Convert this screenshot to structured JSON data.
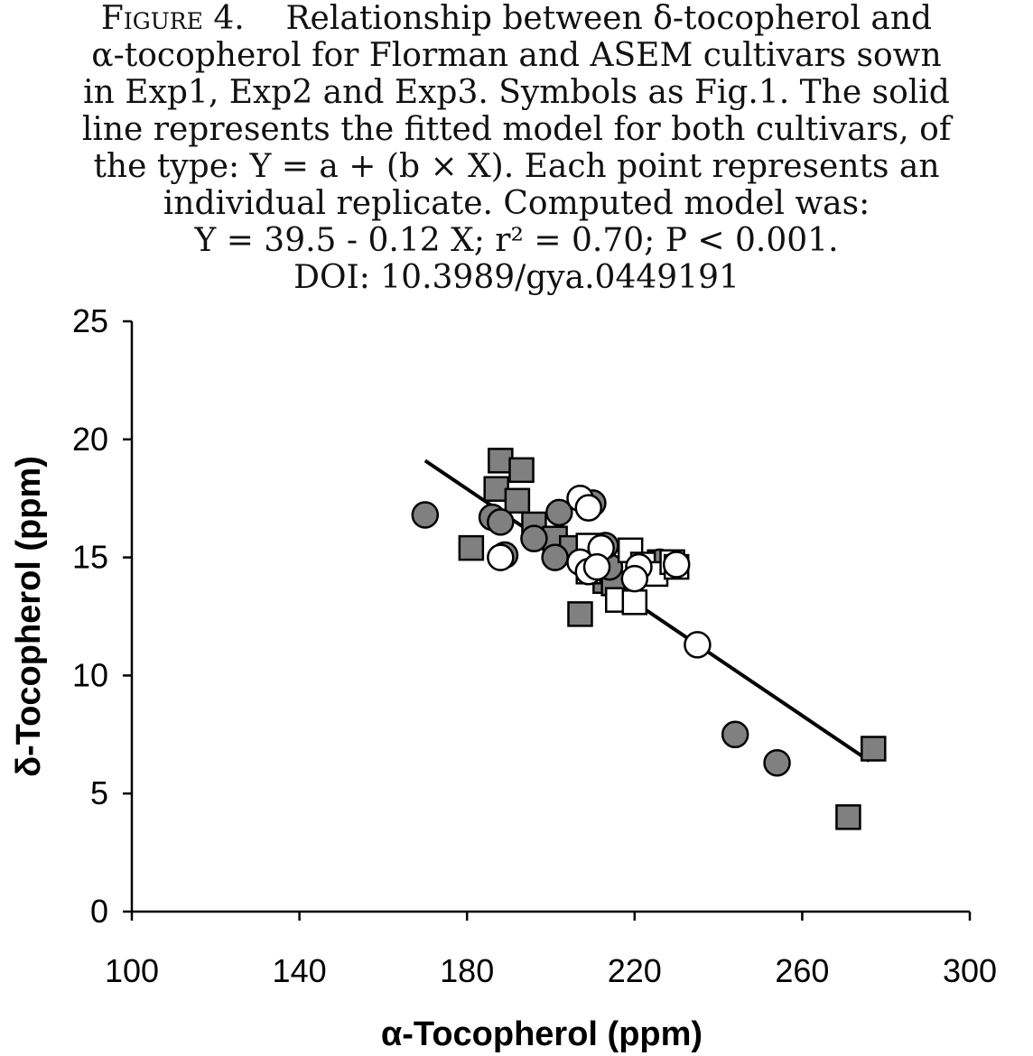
{
  "caption": {
    "label": "Figure 4.",
    "lines": [
      "Relationship between δ-tocopherol and",
      "α-tocopherol for Florman and ASEM cultivars sown",
      "in Exp1, Exp2 and Exp3. Symbols as Fig.1. The solid",
      "line represents the fitted model for both cultivars, of",
      "the type: Y = a + (b × X). Each point represents an",
      "individual replicate. Computed model was:",
      "Y = 39.5 - 0.12 X; r² = 0.70; P < 0.001.",
      "DOI: 10.3989/gya.0449191"
    ]
  },
  "chart_data": {
    "type": "scatter",
    "xlabel": "α-Tocopherol (ppm)",
    "ylabel": "δ-Tocopherol (ppm)",
    "xlim": [
      100,
      300
    ],
    "ylim": [
      0,
      25
    ],
    "xticks": [
      100,
      140,
      180,
      220,
      260,
      300
    ],
    "yticks": [
      0,
      5,
      10,
      15,
      20,
      25
    ],
    "grid": false,
    "colors": {
      "filled": "#808080",
      "open": "#ffffff",
      "edge": "#000000",
      "line": "#000000"
    },
    "series": [
      {
        "marker": "square",
        "fill": "filled",
        "points": [
          [
            188,
            19.1
          ],
          [
            193,
            18.7
          ],
          [
            187,
            17.9
          ],
          [
            192,
            17.4
          ],
          [
            196,
            16.4
          ],
          [
            181,
            15.4
          ],
          [
            201,
            15.8
          ],
          [
            205,
            15.4
          ],
          [
            213,
            14.0
          ],
          [
            215,
            13.9
          ],
          [
            207,
            12.6
          ],
          [
            226,
            14.8
          ],
          [
            277,
            6.9
          ],
          [
            271,
            4.0
          ]
        ]
      },
      {
        "marker": "circle",
        "fill": "filled",
        "points": [
          [
            170,
            16.8
          ],
          [
            186,
            16.7
          ],
          [
            188,
            16.5
          ],
          [
            210,
            17.3
          ],
          [
            202,
            16.9
          ],
          [
            196,
            15.8
          ],
          [
            189,
            15.1
          ],
          [
            201,
            15.0
          ],
          [
            214,
            14.6
          ],
          [
            213,
            15.5
          ],
          [
            226,
            14.8
          ],
          [
            244,
            7.5
          ],
          [
            254,
            6.3
          ]
        ]
      },
      {
        "marker": "square",
        "fill": "open",
        "points": [
          [
            209,
            15.5
          ],
          [
            219,
            15.3
          ],
          [
            222,
            14.7
          ],
          [
            225,
            14.3
          ],
          [
            229,
            14.8
          ],
          [
            230,
            14.6
          ],
          [
            216,
            13.2
          ],
          [
            220,
            13.1
          ],
          [
            209,
            14.4
          ]
        ]
      },
      {
        "marker": "circle",
        "fill": "open",
        "points": [
          [
            207,
            17.5
          ],
          [
            209,
            17.1
          ],
          [
            188,
            15.0
          ],
          [
            212,
            15.4
          ],
          [
            207,
            14.8
          ],
          [
            209,
            14.4
          ],
          [
            221,
            14.6
          ],
          [
            220,
            14.1
          ],
          [
            230,
            14.7
          ],
          [
            235,
            11.3
          ],
          [
            211,
            14.6
          ]
        ]
      }
    ],
    "fit_line": {
      "intercept": 39.5,
      "slope": -0.12,
      "x_range": [
        170,
        276
      ]
    }
  }
}
